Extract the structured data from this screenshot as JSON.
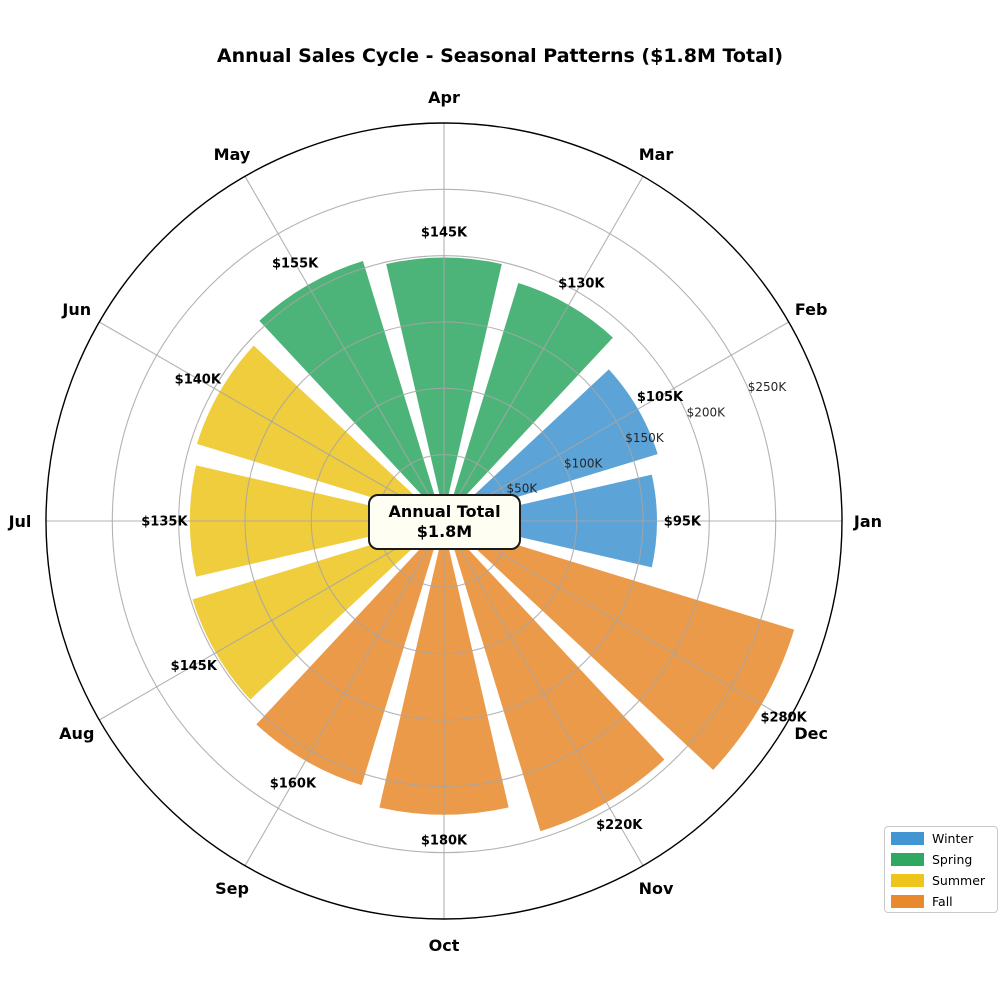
{
  "chart_data": {
    "type": "polar_bar",
    "title": "Annual Sales Cycle - Seasonal Patterns ($1.8M Total)",
    "units": "USD thousands",
    "direction": "counterclockwise",
    "start_angle_deg": 0,
    "categories": [
      "Jan",
      "Feb",
      "Mar",
      "Apr",
      "May",
      "Jun",
      "Jul",
      "Aug",
      "Sep",
      "Oct",
      "Nov",
      "Dec"
    ],
    "values": [
      95,
      105,
      130,
      145,
      155,
      140,
      135,
      145,
      160,
      180,
      220,
      280
    ],
    "value_labels": [
      "$95K",
      "$105K",
      "$130K",
      "$145K",
      "$155K",
      "$140K",
      "$135K",
      "$145K",
      "$160K",
      "$180K",
      "$220K",
      "$280K"
    ],
    "season_of_month": [
      "Winter",
      "Winter",
      "Spring",
      "Spring",
      "Spring",
      "Summer",
      "Summer",
      "Summer",
      "Fall",
      "Fall",
      "Fall",
      "Fall"
    ],
    "legend": [
      {
        "label": "Winter",
        "color": "#4195d1"
      },
      {
        "label": "Spring",
        "color": "#2fa862"
      },
      {
        "label": "Summer",
        "color": "#eec51c"
      },
      {
        "label": "Fall",
        "color": "#e8892b"
      }
    ],
    "radial_ticks": [
      {
        "label": "$50K",
        "value": 50
      },
      {
        "label": "$100K",
        "value": 100
      },
      {
        "label": "$150K",
        "value": 150
      },
      {
        "label": "$200K",
        "value": 200
      },
      {
        "label": "$250K",
        "value": 250
      }
    ],
    "rlim": [
      0,
      300
    ],
    "grid": true,
    "grid_color": "#a6a6a6",
    "outline_color": "#000000",
    "center_label": {
      "line1": "Annual Total",
      "line2": "$1.8M"
    },
    "legend_position": "lower right"
  }
}
